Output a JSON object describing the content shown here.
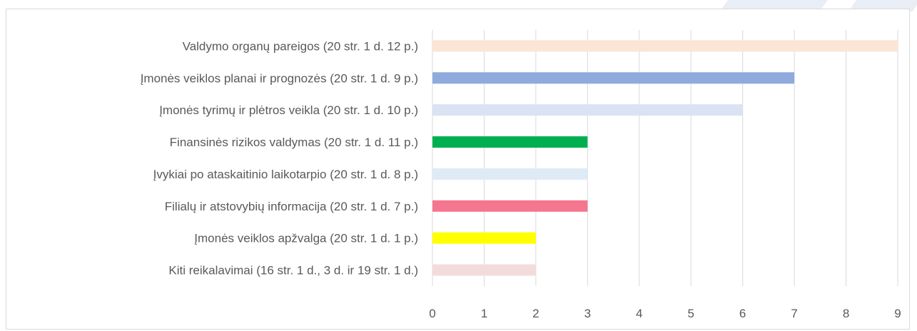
{
  "chart_data": {
    "type": "bar",
    "orientation": "horizontal",
    "title": "",
    "xlabel": "",
    "ylabel": "",
    "xlim": [
      0,
      9
    ],
    "x_ticks": [
      "0",
      "1",
      "2",
      "3",
      "4",
      "5",
      "6",
      "7",
      "8",
      "9"
    ],
    "grid": "vertical",
    "legend": "none",
    "categories": [
      "Valdymo organų pareigos (20 str. 1 d. 12 p.)",
      "Įmonės veiklos planai ir prognozės (20 str. 1 d. 9 p.)",
      "Įmonės tyrimų ir plėtros veikla (20 str. 1 d. 10 p.)",
      "Finansinės rizikos valdymas (20 str. 1 d. 11 p.)",
      "Įvykiai po ataskaitinio laikotarpio (20 str. 1 d. 8 p.)",
      "Filialų ir atstovybių informacija (20 str. 1 d. 7 p.)",
      "Įmonės veiklos apžvalga (20 str. 1 d. 1 p.)",
      "Kiti reikalavimai (16 str. 1 d., 3 d. ir 19 str. 1 d.)"
    ],
    "values": [
      9,
      7,
      6,
      3,
      3,
      3,
      2,
      2
    ],
    "colors": [
      "#fbe5d6",
      "#8faadc",
      "#dae3f3",
      "#00b050",
      "#deebf7",
      "#f4768f",
      "#ffff00",
      "#f2dcdb"
    ]
  }
}
